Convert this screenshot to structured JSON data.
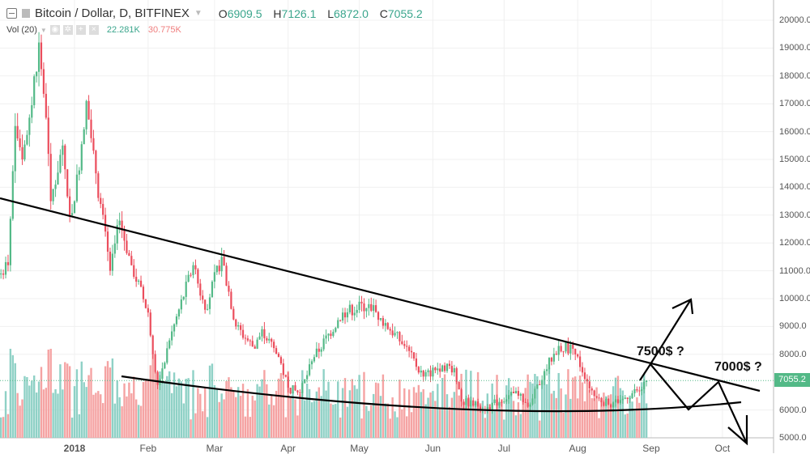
{
  "header": {
    "symbol": "Bitcoin / Dollar, D, BITFINEX",
    "open_label": "O",
    "open": "6909.5",
    "high_label": "H",
    "high": "7126.1",
    "low_label": "L",
    "low": "6872.0",
    "close_label": "C",
    "close": "7055.2"
  },
  "volume_indicator": {
    "label": "Vol (20)",
    "value_1": "22.281K",
    "value_2": "30.775K"
  },
  "colors": {
    "up": "#53b987",
    "down": "#eb4d5c",
    "vol_up": "#8fd1c6",
    "vol_down": "#f5a3a3",
    "last_price": "#53b987"
  },
  "last_price_tag": "7055.2",
  "annotations": {
    "label_1": "7500$ ?",
    "label_2": "7000$ ?"
  },
  "chart_data": {
    "type": "candlestick",
    "y_axis": {
      "ticks": [
        "20000.0",
        "19000.0",
        "18000.0",
        "17000.0",
        "16000.0",
        "15000.0",
        "14000.0",
        "13000.0",
        "12000.0",
        "11000.0",
        "10000.0",
        "9000.0",
        "8000.0",
        "6000.0",
        "5000.0"
      ],
      "range": [
        5000,
        20000
      ]
    },
    "x_axis": {
      "ticks": [
        "2018",
        "Feb",
        "Mar",
        "Apr",
        "May",
        "Jun",
        "Jul",
        "Aug",
        "Sep",
        "Oct"
      ]
    },
    "approx_closes": [
      [
        "2017-12-01",
        10900
      ],
      [
        "2017-12-04",
        11200
      ],
      [
        "2017-12-07",
        16200
      ],
      [
        "2017-12-10",
        15000
      ],
      [
        "2017-12-13",
        16500
      ],
      [
        "2017-12-17",
        19200
      ],
      [
        "2017-12-20",
        16500
      ],
      [
        "2017-12-22",
        13500
      ],
      [
        "2017-12-27",
        15500
      ],
      [
        "2017-12-30",
        13000
      ],
      [
        "2018-01-01",
        13500
      ],
      [
        "2018-01-06",
        17100
      ],
      [
        "2018-01-10",
        14500
      ],
      [
        "2018-01-16",
        11000
      ],
      [
        "2018-01-20",
        12800
      ],
      [
        "2018-01-25",
        11200
      ],
      [
        "2018-02-01",
        9500
      ],
      [
        "2018-02-05",
        6900
      ],
      [
        "2018-02-10",
        8500
      ],
      [
        "2018-02-20",
        11200
      ],
      [
        "2018-02-25",
        9600
      ],
      [
        "2018-03-04",
        11500
      ],
      [
        "2018-03-10",
        9000
      ],
      [
        "2018-03-18",
        8200
      ],
      [
        "2018-03-21",
        8900
      ],
      [
        "2018-03-28",
        7900
      ],
      [
        "2018-04-01",
        6800
      ],
      [
        "2018-04-06",
        6600
      ],
      [
        "2018-04-12",
        7900
      ],
      [
        "2018-04-24",
        9500
      ],
      [
        "2018-05-05",
        9800
      ],
      [
        "2018-05-10",
        9300
      ],
      [
        "2018-05-20",
        8300
      ],
      [
        "2018-05-28",
        7200
      ],
      [
        "2018-06-05",
        7600
      ],
      [
        "2018-06-10",
        7500
      ],
      [
        "2018-06-13",
        6300
      ],
      [
        "2018-06-24",
        6100
      ],
      [
        "2018-07-05",
        6600
      ],
      [
        "2018-07-12",
        6200
      ],
      [
        "2018-07-18",
        7400
      ],
      [
        "2018-07-24",
        8300
      ],
      [
        "2018-07-30",
        8200
      ],
      [
        "2018-08-08",
        6500
      ],
      [
        "2018-08-14",
        6200
      ],
      [
        "2018-08-20",
        6400
      ],
      [
        "2018-08-26",
        6700
      ],
      [
        "2018-08-30",
        7055.2
      ]
    ]
  }
}
